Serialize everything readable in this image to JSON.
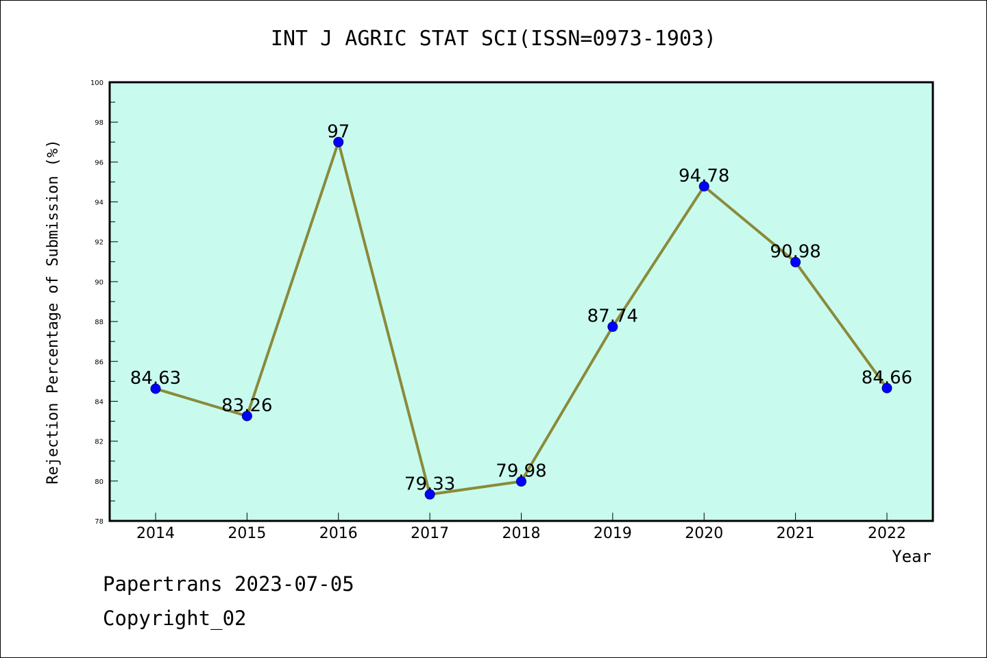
{
  "chart_data": {
    "type": "line",
    "title": "INT J AGRIC STAT SCI(ISSN=0973-1903)",
    "xlabel": "Year",
    "ylabel": "Rejection Percentage of Submission (%)",
    "categories": [
      "2014",
      "2015",
      "2016",
      "2017",
      "2018",
      "2019",
      "2020",
      "2021",
      "2022"
    ],
    "values": [
      84.63,
      83.26,
      97,
      79.33,
      79.98,
      87.74,
      94.78,
      90.98,
      84.66
    ],
    "data_labels": [
      "84.63",
      "83.26",
      "97",
      "79.33",
      "79.98",
      "87.74",
      "94.78",
      "90.98",
      "84.66"
    ],
    "ylim": [
      78,
      100
    ],
    "yticks": [
      "78",
      "80",
      "82",
      "84",
      "86",
      "88",
      "90",
      "92",
      "94",
      "96",
      "98",
      "100"
    ],
    "grid": false,
    "line_color": "#8b8a3a",
    "marker_color": "#0000ff",
    "plot_background": "#c8fbee"
  },
  "footer": {
    "line1": "Papertrans 2023-07-05",
    "line2": "Copyright_02"
  }
}
